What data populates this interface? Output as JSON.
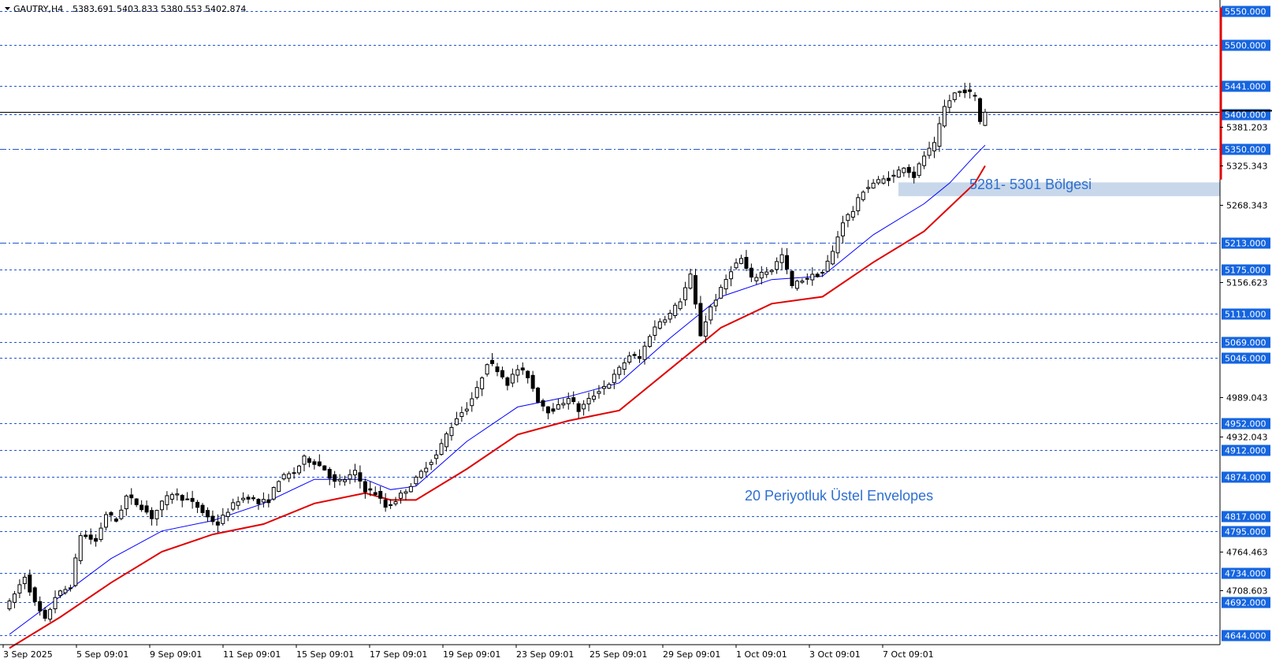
{
  "header": {
    "symbol": "GAUTRY,H4",
    "ohlc": "5383.691 5403.833 5380.553 5402.874"
  },
  "annotations": {
    "zone_label": "5281- 5301 Bölgesi",
    "envelope_label": "20 Periyotluk Üstel Envelopes"
  },
  "colors": {
    "level_line": "#2255cc",
    "envelope_upper": "#0000ff",
    "envelope_lower": "#e00000",
    "zone_fill": "#c8d8ea",
    "price_tag_bg": "#1565e0",
    "red_marker": "#e00000"
  },
  "chart_data": {
    "type": "candlestick",
    "symbol": "GAUTRY",
    "timeframe": "H4",
    "ylim": [
      4630,
      5560
    ],
    "current_price": 5402.874,
    "levels": [
      5550,
      5500,
      5441,
      5400,
      5350,
      5213,
      5175,
      5111,
      5069,
      5046,
      4952,
      4912,
      4874,
      4817,
      4795,
      4734,
      4692,
      4644
    ],
    "level_labels": [
      "5550.000",
      "5500.000",
      "5441.000",
      "5400.000",
      "5350.000",
      "5213.000",
      "5175.000",
      "5111.000",
      "5069.000",
      "5046.000",
      "4952.000",
      "4912.000",
      "4874.000",
      "4817.000",
      "4795.000",
      "4734.000",
      "4692.000",
      "4644.000"
    ],
    "y_ticks": [
      5381.203,
      5325.343,
      5268.343,
      5156.623,
      4989.043,
      4932.043,
      4764.463,
      4708.603
    ],
    "y_tick_labels": [
      "5381.203",
      "5325.343",
      "5268.343",
      "5156.623",
      "4989.043",
      "4932.043",
      "4764.463",
      "4708.603"
    ],
    "x_labels": [
      "3 Sep 2025",
      "5 Sep 09:01",
      "9 Sep 09:01",
      "11 Sep 09:01",
      "15 Sep 09:01",
      "17 Sep 09:01",
      "19 Sep 09:01",
      "23 Sep 09:01",
      "25 Sep 09:01",
      "29 Sep 09:01",
      "1 Oct 09:01",
      "3 Oct 09:01",
      "7 Oct 09:01"
    ],
    "zone": {
      "low": 5281,
      "high": 5301
    },
    "close_path": [
      [
        0,
        4690
      ],
      [
        3,
        4730
      ],
      [
        5,
        4690
      ],
      [
        7,
        4665
      ],
      [
        9,
        4700
      ],
      [
        12,
        4715
      ],
      [
        14,
        4790
      ],
      [
        17,
        4780
      ],
      [
        19,
        4820
      ],
      [
        21,
        4810
      ],
      [
        23,
        4845
      ],
      [
        26,
        4830
      ],
      [
        28,
        4815
      ],
      [
        30,
        4835
      ],
      [
        32,
        4850
      ],
      [
        35,
        4840
      ],
      [
        37,
        4830
      ],
      [
        39,
        4815
      ],
      [
        41,
        4805
      ],
      [
        43,
        4825
      ],
      [
        45,
        4840
      ],
      [
        47,
        4845
      ],
      [
        49,
        4835
      ],
      [
        51,
        4840
      ],
      [
        53,
        4870
      ],
      [
        56,
        4880
      ],
      [
        58,
        4900
      ],
      [
        60,
        4895
      ],
      [
        62,
        4885
      ],
      [
        64,
        4865
      ],
      [
        66,
        4870
      ],
      [
        68,
        4880
      ],
      [
        70,
        4855
      ],
      [
        72,
        4850
      ],
      [
        74,
        4830
      ],
      [
        76,
        4840
      ],
      [
        78,
        4855
      ],
      [
        80,
        4870
      ],
      [
        82,
        4890
      ],
      [
        84,
        4905
      ],
      [
        86,
        4935
      ],
      [
        88,
        4960
      ],
      [
        90,
        4975
      ],
      [
        92,
        5000
      ],
      [
        94,
        5040
      ],
      [
        96,
        5030
      ],
      [
        98,
        5010
      ],
      [
        100,
        5030
      ],
      [
        102,
        5020
      ],
      [
        104,
        4985
      ],
      [
        106,
        4970
      ],
      [
        108,
        4975
      ],
      [
        110,
        4990
      ],
      [
        112,
        4970
      ],
      [
        114,
        4985
      ],
      [
        116,
        5000
      ],
      [
        118,
        5010
      ],
      [
        120,
        5030
      ],
      [
        122,
        5050
      ],
      [
        124,
        5045
      ],
      [
        126,
        5080
      ],
      [
        128,
        5100
      ],
      [
        130,
        5110
      ],
      [
        132,
        5130
      ],
      [
        134,
        5165
      ],
      [
        136,
        5080
      ],
      [
        138,
        5120
      ],
      [
        140,
        5145
      ],
      [
        142,
        5175
      ],
      [
        144,
        5190
      ],
      [
        146,
        5160
      ],
      [
        148,
        5170
      ],
      [
        150,
        5175
      ],
      [
        152,
        5195
      ],
      [
        154,
        5150
      ],
      [
        156,
        5160
      ],
      [
        158,
        5165
      ],
      [
        160,
        5170
      ],
      [
        162,
        5200
      ],
      [
        164,
        5245
      ],
      [
        166,
        5260
      ],
      [
        168,
        5290
      ],
      [
        170,
        5300
      ],
      [
        172,
        5305
      ],
      [
        174,
        5310
      ],
      [
        176,
        5325
      ],
      [
        178,
        5310
      ],
      [
        180,
        5340
      ],
      [
        182,
        5355
      ],
      [
        184,
        5410
      ],
      [
        186,
        5430
      ],
      [
        188,
        5435
      ],
      [
        190,
        5425
      ],
      [
        191,
        5390
      ],
      [
        192,
        5402
      ]
    ],
    "series": [
      {
        "name": "20 Periyotluk Üstel Envelopes (upper)",
        "color": "#0000ff",
        "points": [
          [
            0,
            4645
          ],
          [
            10,
            4700
          ],
          [
            20,
            4755
          ],
          [
            30,
            4795
          ],
          [
            40,
            4810
          ],
          [
            50,
            4835
          ],
          [
            60,
            4870
          ],
          [
            70,
            4870
          ],
          [
            75,
            4855
          ],
          [
            80,
            4860
          ],
          [
            90,
            4925
          ],
          [
            100,
            4975
          ],
          [
            110,
            4990
          ],
          [
            120,
            5010
          ],
          [
            130,
            5075
          ],
          [
            140,
            5135
          ],
          [
            150,
            5160
          ],
          [
            160,
            5165
          ],
          [
            170,
            5225
          ],
          [
            180,
            5270
          ],
          [
            185,
            5300
          ],
          [
            190,
            5340
          ],
          [
            192,
            5355
          ]
        ]
      },
      {
        "name": "20 Periyotluk Üstel Envelopes (lower)",
        "color": "#e00000",
        "points": [
          [
            0,
            4625
          ],
          [
            10,
            4670
          ],
          [
            20,
            4720
          ],
          [
            30,
            4765
          ],
          [
            40,
            4790
          ],
          [
            50,
            4805
          ],
          [
            60,
            4835
          ],
          [
            70,
            4850
          ],
          [
            75,
            4840
          ],
          [
            80,
            4840
          ],
          [
            90,
            4885
          ],
          [
            100,
            4935
          ],
          [
            110,
            4955
          ],
          [
            120,
            4970
          ],
          [
            130,
            5030
          ],
          [
            140,
            5090
          ],
          [
            150,
            5125
          ],
          [
            160,
            5135
          ],
          [
            170,
            5185
          ],
          [
            180,
            5230
          ],
          [
            185,
            5265
          ],
          [
            190,
            5300
          ],
          [
            192,
            5325
          ]
        ]
      }
    ]
  }
}
